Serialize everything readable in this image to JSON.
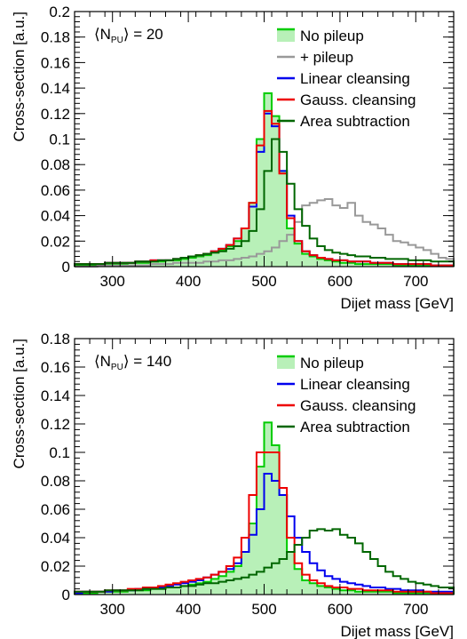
{
  "chart_data": [
    {
      "type": "line",
      "annotation": "⟨N_PU⟩ = 20",
      "annotation_main": "N",
      "annotation_sub": "PU",
      "annotation_value": "= 20",
      "xlabel": "Dijet mass [GeV]",
      "ylabel": "Cross-section [a.u.]",
      "xlim": [
        250,
        750
      ],
      "ylim": [
        0,
        0.2
      ],
      "xticks": [
        300,
        400,
        500,
        600,
        700
      ],
      "yticks": [
        0,
        0.02,
        0.04,
        0.06,
        0.08,
        0.1,
        0.12,
        0.14,
        0.16,
        0.18,
        0.2
      ],
      "ytick_labels": [
        "0",
        "0.02",
        "0.04",
        "0.06",
        "0.08",
        "0.1",
        "0.12",
        "0.14",
        "0.16",
        "0.18",
        "0.2"
      ],
      "legend_position": "top-right",
      "bin_width": 10,
      "x": [
        250,
        260,
        270,
        280,
        290,
        300,
        310,
        320,
        330,
        340,
        350,
        360,
        370,
        380,
        390,
        400,
        410,
        420,
        430,
        440,
        450,
        460,
        470,
        480,
        490,
        500,
        510,
        520,
        530,
        540,
        550,
        560,
        570,
        580,
        590,
        600,
        610,
        620,
        630,
        640,
        650,
        660,
        670,
        680,
        690,
        700,
        710,
        720,
        730,
        740
      ],
      "series": [
        {
          "name": "No pileup",
          "color": "#00cc00",
          "fill": "#b8f0b8",
          "style": "filled",
          "values": [
            0.001,
            0.001,
            0.001,
            0.002,
            0.002,
            0.002,
            0.002,
            0.003,
            0.003,
            0.003,
            0.004,
            0.004,
            0.005,
            0.005,
            0.006,
            0.007,
            0.008,
            0.009,
            0.011,
            0.013,
            0.016,
            0.02,
            0.03,
            0.05,
            0.1,
            0.136,
            0.118,
            0.075,
            0.03,
            0.018,
            0.01,
            0.008,
            0.006,
            0.005,
            0.004,
            0.003,
            0.003,
            0.002,
            0.002,
            0.002,
            0.002,
            0.002,
            0.001,
            0.001,
            0.001,
            0.001,
            0.001,
            0.001,
            0.001,
            0.001
          ]
        },
        {
          "name": "+ pileup",
          "color": "#999999",
          "style": "line",
          "values": [
            0.0,
            0.0,
            0.0,
            0.001,
            0.001,
            0.001,
            0.001,
            0.001,
            0.001,
            0.001,
            0.002,
            0.002,
            0.002,
            0.003,
            0.003,
            0.003,
            0.003,
            0.004,
            0.004,
            0.005,
            0.005,
            0.006,
            0.007,
            0.008,
            0.01,
            0.012,
            0.015,
            0.02,
            0.025,
            0.035,
            0.048,
            0.05,
            0.052,
            0.053,
            0.048,
            0.046,
            0.05,
            0.04,
            0.035,
            0.033,
            0.03,
            0.025,
            0.02,
            0.019,
            0.017,
            0.015,
            0.013,
            0.01,
            0.007,
            0.006
          ]
        },
        {
          "name": "Linear cleansing",
          "color": "#0000ee",
          "style": "line",
          "values": [
            0.002,
            0.002,
            0.002,
            0.002,
            0.003,
            0.003,
            0.003,
            0.003,
            0.004,
            0.004,
            0.005,
            0.005,
            0.005,
            0.006,
            0.007,
            0.008,
            0.009,
            0.01,
            0.012,
            0.014,
            0.017,
            0.022,
            0.03,
            0.047,
            0.09,
            0.12,
            0.11,
            0.075,
            0.04,
            0.02,
            0.012,
            0.009,
            0.007,
            0.006,
            0.005,
            0.005,
            0.004,
            0.004,
            0.004,
            0.003,
            0.003,
            0.003,
            0.002,
            0.002,
            0.002,
            0.002,
            0.002,
            0.001,
            0.001,
            0.001
          ]
        },
        {
          "name": "Gauss. cleansing",
          "color": "#ee0000",
          "style": "line",
          "values": [
            0.002,
            0.002,
            0.002,
            0.002,
            0.003,
            0.003,
            0.003,
            0.003,
            0.004,
            0.004,
            0.005,
            0.005,
            0.005,
            0.006,
            0.007,
            0.008,
            0.009,
            0.01,
            0.012,
            0.014,
            0.017,
            0.022,
            0.03,
            0.05,
            0.095,
            0.122,
            0.112,
            0.073,
            0.038,
            0.02,
            0.012,
            0.009,
            0.007,
            0.006,
            0.005,
            0.005,
            0.004,
            0.004,
            0.004,
            0.003,
            0.003,
            0.003,
            0.002,
            0.002,
            0.002,
            0.002,
            0.002,
            0.001,
            0.001,
            0.001
          ]
        },
        {
          "name": "Area subtraction",
          "color": "#006600",
          "style": "line",
          "values": [
            0.002,
            0.002,
            0.002,
            0.002,
            0.003,
            0.003,
            0.003,
            0.003,
            0.004,
            0.004,
            0.004,
            0.005,
            0.005,
            0.006,
            0.007,
            0.008,
            0.009,
            0.01,
            0.011,
            0.012,
            0.014,
            0.016,
            0.02,
            0.028,
            0.045,
            0.075,
            0.1,
            0.09,
            0.065,
            0.045,
            0.032,
            0.022,
            0.016,
            0.013,
            0.011,
            0.01,
            0.009,
            0.008,
            0.008,
            0.007,
            0.007,
            0.006,
            0.006,
            0.006,
            0.005,
            0.005,
            0.005,
            0.004,
            0.004,
            0.004
          ]
        }
      ]
    },
    {
      "type": "line",
      "annotation": "⟨N_PU⟩ = 140",
      "annotation_main": "N",
      "annotation_sub": "PU",
      "annotation_value": "= 140",
      "xlabel": "Dijet mass [GeV]",
      "ylabel": "Cross-section [a.u.]",
      "xlim": [
        250,
        750
      ],
      "ylim": [
        0,
        0.18
      ],
      "xticks": [
        300,
        400,
        500,
        600,
        700
      ],
      "yticks": [
        0,
        0.02,
        0.04,
        0.06,
        0.08,
        0.1,
        0.12,
        0.14,
        0.16,
        0.18
      ],
      "ytick_labels": [
        "0",
        "0.02",
        "0.04",
        "0.06",
        "0.08",
        "0.1",
        "0.12",
        "0.14",
        "0.16",
        "0.18"
      ],
      "legend_position": "top-right",
      "bin_width": 10,
      "x": [
        250,
        260,
        270,
        280,
        290,
        300,
        310,
        320,
        330,
        340,
        350,
        360,
        370,
        380,
        390,
        400,
        410,
        420,
        430,
        440,
        450,
        460,
        470,
        480,
        490,
        500,
        510,
        520,
        530,
        540,
        550,
        560,
        570,
        580,
        590,
        600,
        610,
        620,
        630,
        640,
        650,
        660,
        670,
        680,
        690,
        700,
        710,
        720,
        730,
        740
      ],
      "series": [
        {
          "name": "No pileup",
          "color": "#00cc00",
          "fill": "#b8f0b8",
          "style": "filled",
          "values": [
            0.001,
            0.001,
            0.001,
            0.002,
            0.002,
            0.002,
            0.002,
            0.003,
            0.003,
            0.003,
            0.004,
            0.004,
            0.005,
            0.005,
            0.006,
            0.007,
            0.008,
            0.009,
            0.011,
            0.013,
            0.016,
            0.02,
            0.03,
            0.05,
            0.09,
            0.121,
            0.105,
            0.07,
            0.03,
            0.018,
            0.01,
            0.008,
            0.006,
            0.005,
            0.004,
            0.003,
            0.003,
            0.002,
            0.002,
            0.002,
            0.002,
            0.002,
            0.001,
            0.001,
            0.001,
            0.001,
            0.001,
            0.001,
            0.001,
            0.001
          ]
        },
        {
          "name": "Linear cleansing",
          "color": "#0000ee",
          "style": "line",
          "values": [
            0.001,
            0.002,
            0.002,
            0.002,
            0.002,
            0.003,
            0.003,
            0.003,
            0.004,
            0.004,
            0.005,
            0.005,
            0.006,
            0.007,
            0.008,
            0.009,
            0.01,
            0.012,
            0.014,
            0.016,
            0.018,
            0.022,
            0.03,
            0.042,
            0.06,
            0.085,
            0.08,
            0.07,
            0.055,
            0.04,
            0.03,
            0.022,
            0.017,
            0.013,
            0.011,
            0.009,
            0.008,
            0.007,
            0.006,
            0.005,
            0.005,
            0.004,
            0.004,
            0.003,
            0.003,
            0.003,
            0.002,
            0.002,
            0.002,
            0.002
          ]
        },
        {
          "name": "Gauss. cleansing",
          "color": "#ee0000",
          "style": "line",
          "values": [
            0.002,
            0.002,
            0.002,
            0.002,
            0.003,
            0.003,
            0.003,
            0.004,
            0.004,
            0.005,
            0.005,
            0.006,
            0.007,
            0.008,
            0.009,
            0.01,
            0.011,
            0.012,
            0.014,
            0.016,
            0.02,
            0.026,
            0.04,
            0.07,
            0.1,
            0.1,
            0.1,
            0.075,
            0.04,
            0.022,
            0.014,
            0.01,
            0.008,
            0.006,
            0.005,
            0.005,
            0.004,
            0.004,
            0.003,
            0.003,
            0.003,
            0.003,
            0.002,
            0.002,
            0.002,
            0.002,
            0.002,
            0.001,
            0.001,
            0.001
          ]
        },
        {
          "name": "Area subtraction",
          "color": "#006600",
          "style": "line",
          "values": [
            0.002,
            0.002,
            0.002,
            0.002,
            0.003,
            0.003,
            0.003,
            0.003,
            0.003,
            0.004,
            0.004,
            0.004,
            0.005,
            0.005,
            0.006,
            0.006,
            0.007,
            0.008,
            0.008,
            0.009,
            0.01,
            0.011,
            0.012,
            0.014,
            0.016,
            0.019,
            0.022,
            0.025,
            0.03,
            0.035,
            0.04,
            0.045,
            0.046,
            0.045,
            0.046,
            0.042,
            0.04,
            0.036,
            0.03,
            0.025,
            0.02,
            0.016,
            0.013,
            0.011,
            0.009,
            0.008,
            0.007,
            0.006,
            0.005,
            0.005
          ]
        }
      ]
    }
  ]
}
